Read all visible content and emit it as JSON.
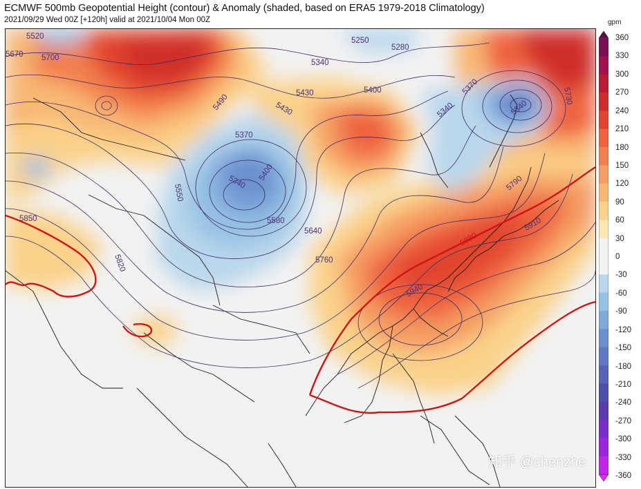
{
  "header": {
    "title": "ECMWF 500mb Geopotential Height (contour) & Anomaly (shaded, based on ERA5 1979-2018 Climatology)",
    "subtitle": "2021/09/29 Wed 00Z [+120h] valid at 2021/10/04 Mon 00Z"
  },
  "colorbar": {
    "unit": "gpm",
    "ticks": [
      360,
      330,
      300,
      270,
      240,
      210,
      180,
      150,
      120,
      90,
      60,
      30,
      0,
      -30,
      -60,
      -90,
      -120,
      -150,
      -180,
      -210,
      -240,
      -270,
      -300,
      -330,
      -360
    ],
    "colors": [
      "#5a0a4e",
      "#7a0f55",
      "#a0124e",
      "#b81b32",
      "#cf2d2a",
      "#e2452e",
      "#ee6340",
      "#f27f4e",
      "#f59d63",
      "#f8b874",
      "#fbd28a",
      "#fde7b0",
      "#f2f2f2",
      "#f2f2f2",
      "#b9d7ec",
      "#98c2e4",
      "#7ea9db",
      "#6a90cf",
      "#5f79c3",
      "#5463b8",
      "#4d4fac",
      "#5a3cb0",
      "#7a2ec8",
      "#9b25dc",
      "#c025e8",
      "#e22af0"
    ]
  },
  "contour_labels": [
    {
      "text": "5520",
      "color": "#4a2f7a"
    },
    {
      "text": "5670",
      "color": "#4a2f7a"
    },
    {
      "text": "5700",
      "color": "#4a2f7a"
    },
    {
      "text": "5250",
      "color": "#4a2f7a"
    },
    {
      "text": "5280",
      "color": "#4a2f7a"
    },
    {
      "text": "5340",
      "color": "#4a2f7a"
    },
    {
      "text": "5430",
      "color": "#4a2f7a"
    },
    {
      "text": "5400",
      "color": "#4a2f7a"
    },
    {
      "text": "5490",
      "color": "#4a2f7a"
    },
    {
      "text": "5430",
      "color": "#4a2f7a"
    },
    {
      "text": "5370",
      "color": "#4a2f7a"
    },
    {
      "text": "5340",
      "color": "#4a2f7a"
    },
    {
      "text": "5400",
      "color": "#4a2f7a"
    },
    {
      "text": "5550",
      "color": "#4a2f7a"
    },
    {
      "text": "5580",
      "color": "#4a2f7a"
    },
    {
      "text": "5640",
      "color": "#4a2f7a"
    },
    {
      "text": "5760",
      "color": "#4a2f7a"
    },
    {
      "text": "5850",
      "color": "#4a2f7a"
    },
    {
      "text": "5820",
      "color": "#4a2f7a"
    },
    {
      "text": "5370",
      "color": "#4a2f7a"
    },
    {
      "text": "5340",
      "color": "#4a2f7a"
    },
    {
      "text": "5340",
      "color": "#4a2f7a"
    },
    {
      "text": "5730",
      "color": "#4a2f7a"
    },
    {
      "text": "5790",
      "color": "#4a2f7a"
    },
    {
      "text": "5910",
      "color": "#4a2f7a"
    },
    {
      "text": "5880",
      "color": "#d01515"
    },
    {
      "text": "5940",
      "color": "#4a2f7a"
    }
  ],
  "watermark": "知乎 @chenzhe"
}
